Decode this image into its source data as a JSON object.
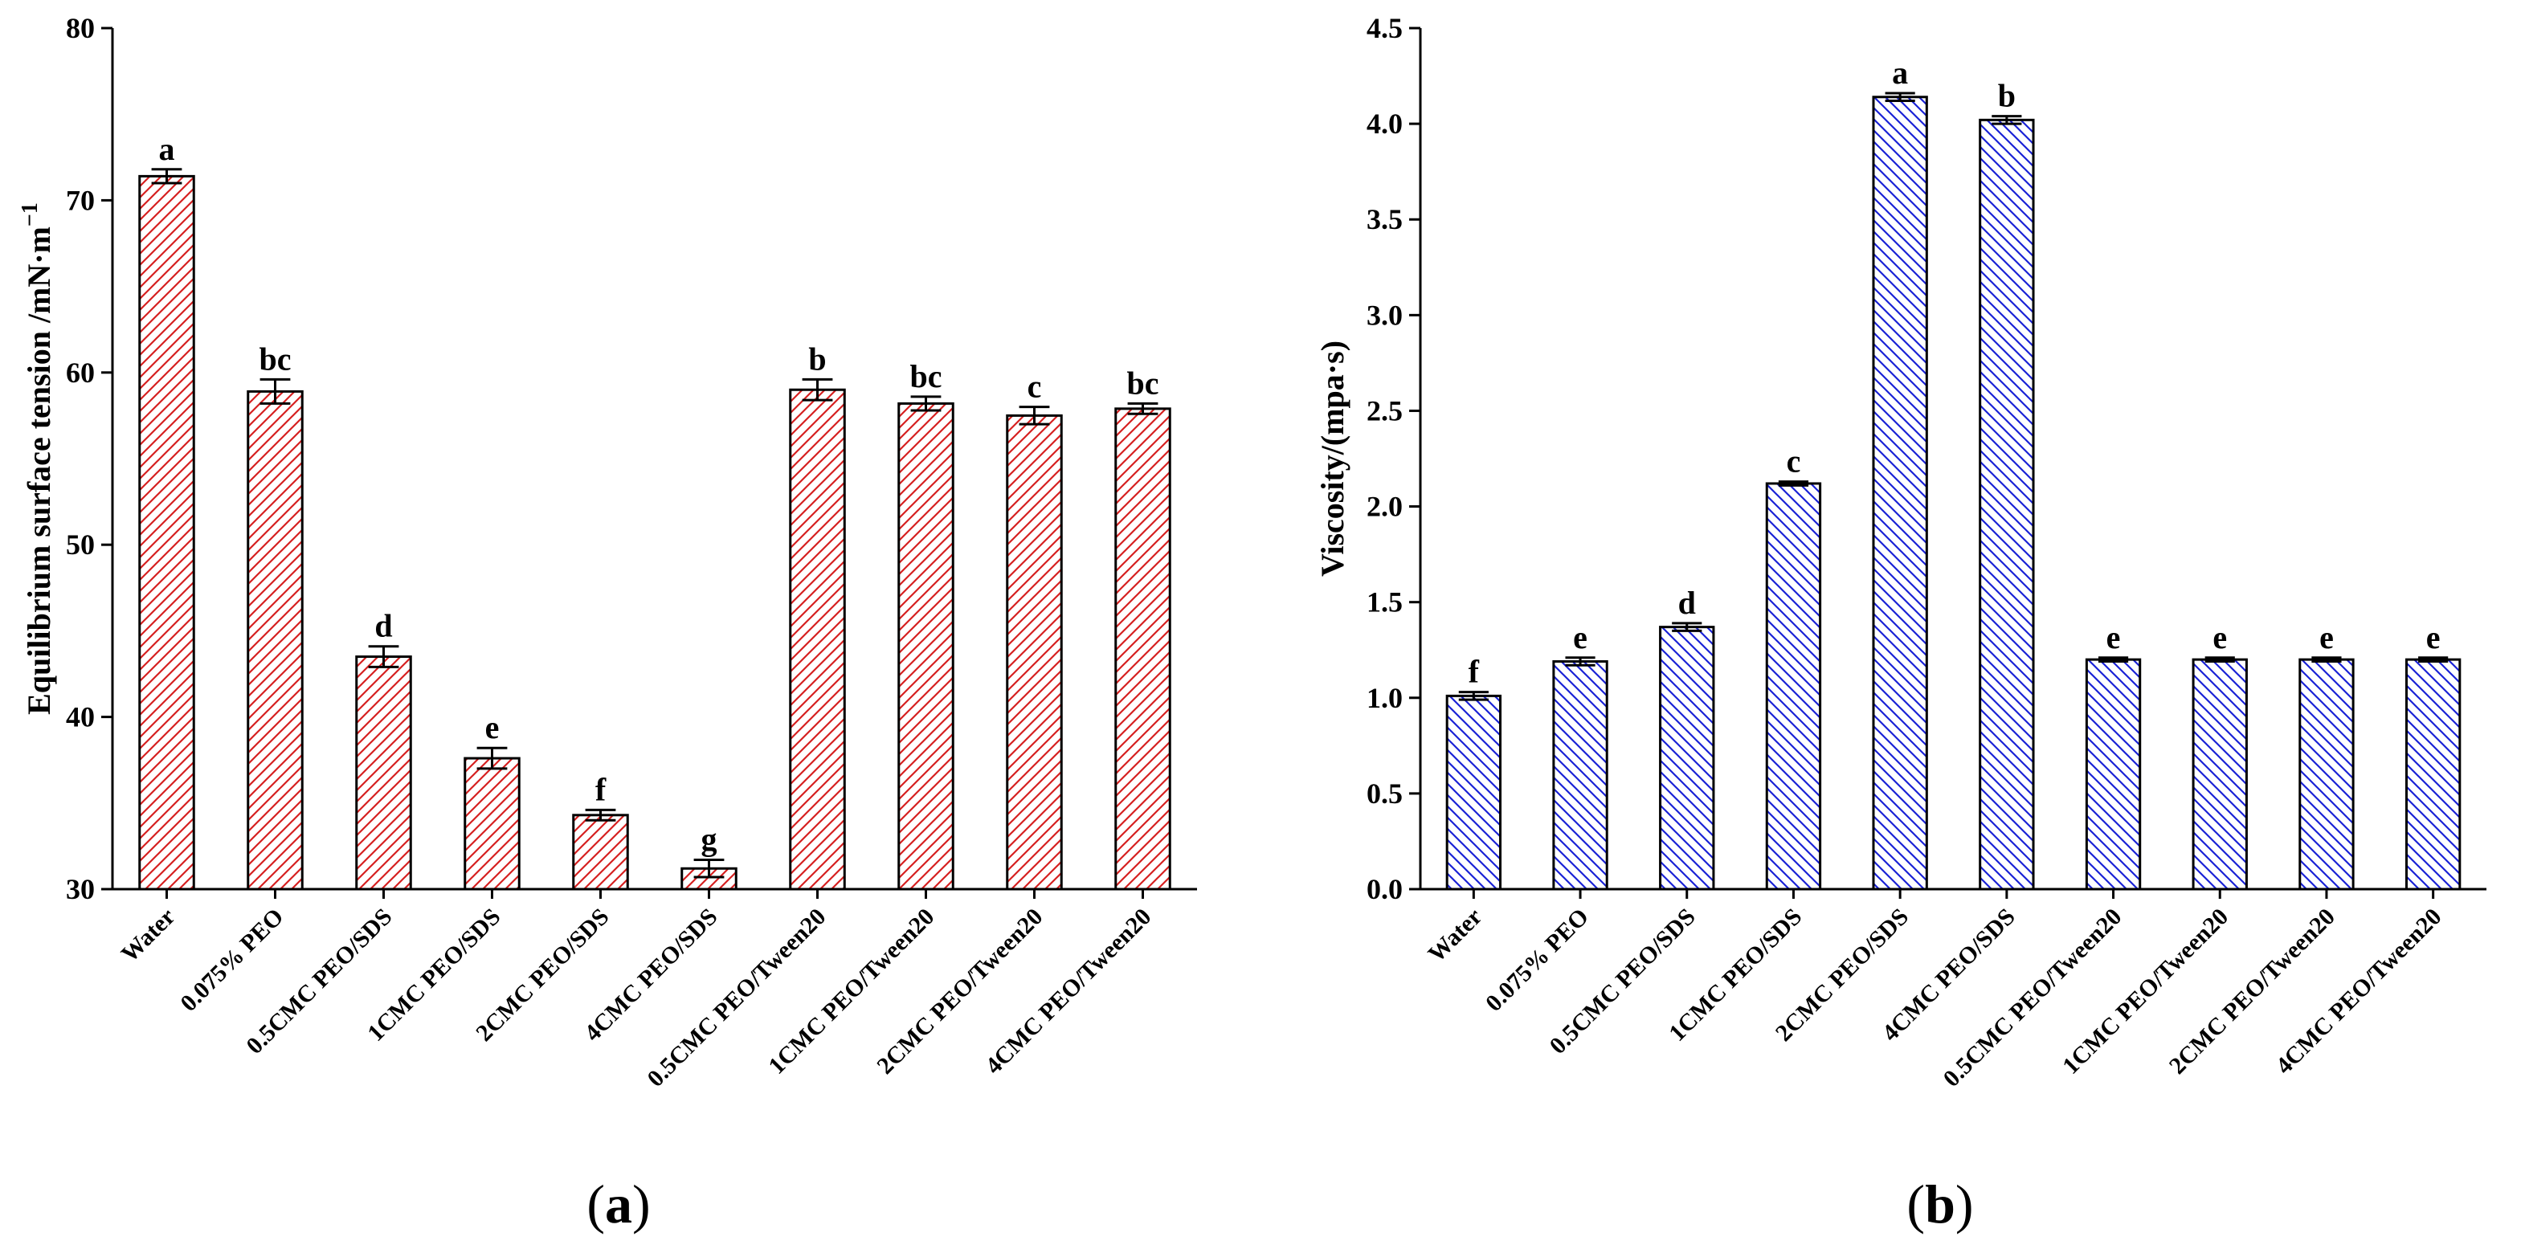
{
  "chart_data": [
    {
      "type": "bar",
      "panel_label": "(a)",
      "panel_letter": "a",
      "ylabel": "Equilibrium surface tension /mN·m",
      "ylabel_superscript": "−1",
      "xlabel": "",
      "ylim": [
        30,
        80
      ],
      "yticks": [
        30,
        40,
        50,
        60,
        70,
        80
      ],
      "categories": [
        "Water",
        "0.075% PEO",
        "0.5CMC PEO/SDS",
        "1CMC PEO/SDS",
        "2CMC PEO/SDS",
        "4CMC PEO/SDS",
        "0.5CMC PEO/Tween20",
        "1CMC PEO/Tween20",
        "2CMC PEO/Tween20",
        "4CMC PEO/Tween20"
      ],
      "values": [
        71.4,
        58.9,
        43.5,
        37.6,
        34.3,
        31.2,
        59.0,
        58.2,
        57.5,
        57.9
      ],
      "errors": [
        0.4,
        0.7,
        0.6,
        0.6,
        0.3,
        0.5,
        0.6,
        0.4,
        0.5,
        0.3
      ],
      "significance": [
        "a",
        "bc",
        "d",
        "e",
        "f",
        "g",
        "b",
        "bc",
        "c",
        "bc"
      ],
      "color": "#d62020",
      "hatch": "forward"
    },
    {
      "type": "bar",
      "panel_label": "(b)",
      "panel_letter": "b",
      "ylabel": "Viscosity/(mpa·s)",
      "ylabel_superscript": "",
      "xlabel": "",
      "ylim": [
        0,
        4.5
      ],
      "yticks": [
        "0.0",
        "0.5",
        "1.0",
        "1.5",
        "2.0",
        "2.5",
        "3.0",
        "3.5",
        "4.0",
        "4.5"
      ],
      "categories": [
        "Water",
        "0.075% PEO",
        "0.5CMC PEO/SDS",
        "1CMC PEO/SDS",
        "2CMC PEO/SDS",
        "4CMC PEO/SDS",
        "0.5CMC PEO/Tween20",
        "1CMC PEO/Tween20",
        "2CMC PEO/Tween20",
        "4CMC PEO/Tween20"
      ],
      "values": [
        1.01,
        1.19,
        1.37,
        2.12,
        4.14,
        4.02,
        1.2,
        1.2,
        1.2,
        1.2
      ],
      "errors": [
        0.02,
        0.02,
        0.02,
        0.01,
        0.02,
        0.02,
        0.01,
        0.01,
        0.01,
        0.01
      ],
      "significance": [
        "f",
        "e",
        "d",
        "c",
        "a",
        "b",
        "e",
        "e",
        "e",
        "e"
      ],
      "color": "#1a22d6",
      "hatch": "backward"
    }
  ]
}
